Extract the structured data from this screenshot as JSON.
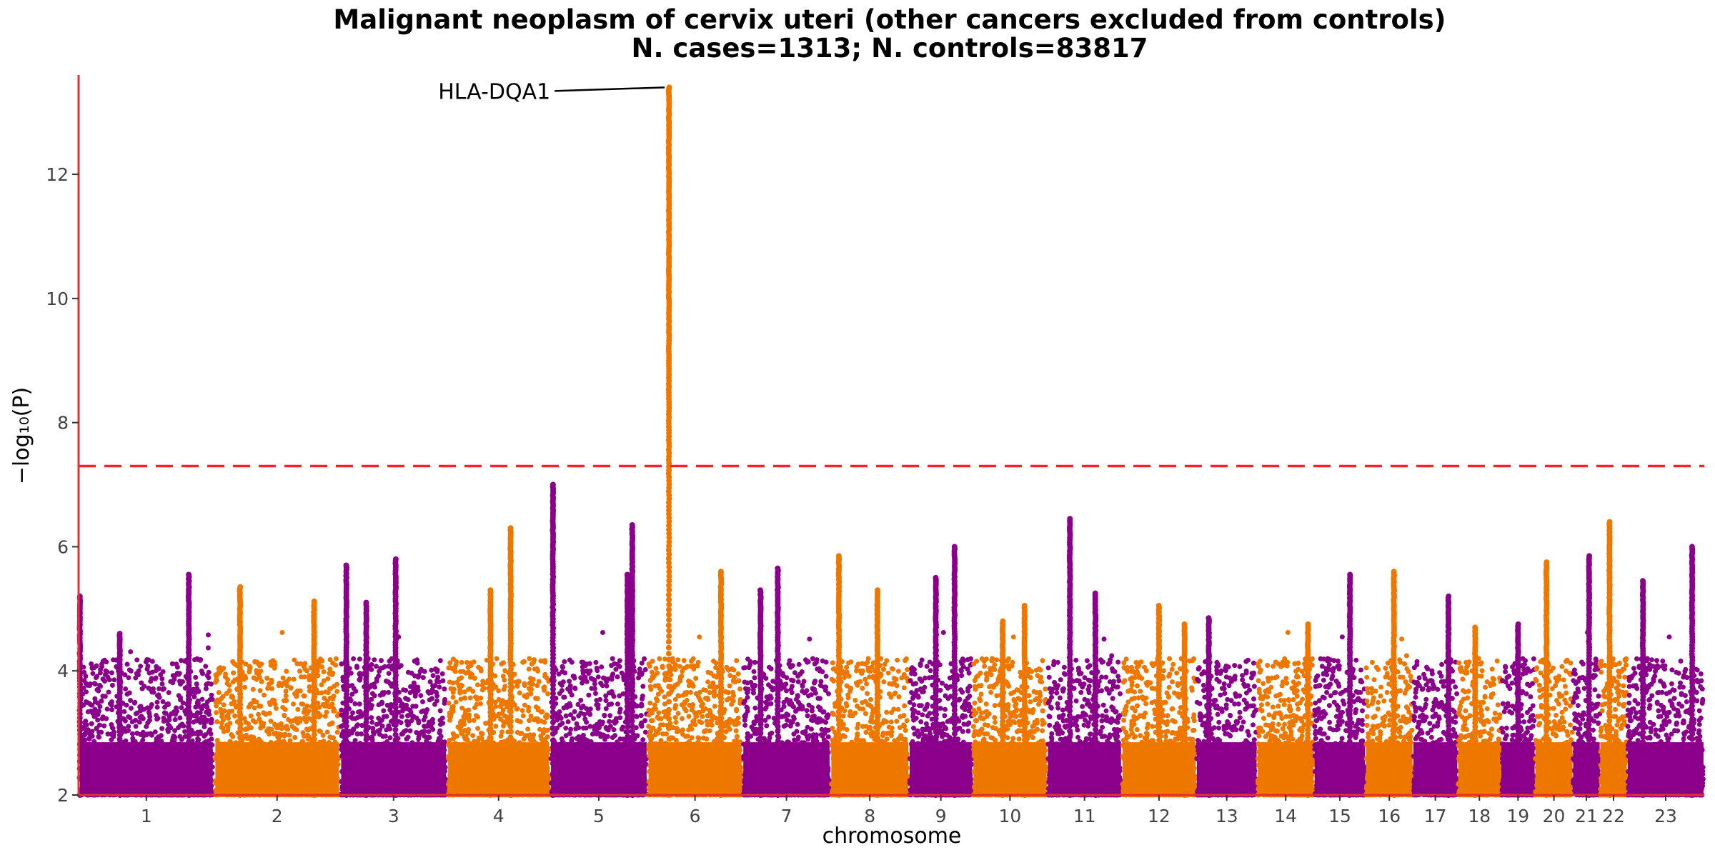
{
  "chart_data": {
    "type": "scatter",
    "subtype": "manhattan",
    "title_line1": "Malignant neoplasm of cervix uteri (other cancers excluded from controls)",
    "title_line2": "N. cases=1313; N. controls=83817",
    "xlabel": "chromosome",
    "ylabel": "−log₁₀(P)",
    "ylim": [
      2,
      13.6
    ],
    "yticks": [
      2,
      4,
      6,
      8,
      10,
      12
    ],
    "threshold": 7.3,
    "threshold_color": "#ff2020",
    "axis_color": "#e53030",
    "grid": false,
    "colors": {
      "odd": "#8b008b",
      "even": "#ee7700"
    },
    "chromosomes": [
      {
        "label": "1",
        "color": "odd",
        "start": 0.0,
        "end": 1.0,
        "peaks": [
          [
            0.0,
            5.2
          ],
          [
            0.82,
            5.55
          ],
          [
            0.3,
            4.6
          ]
        ]
      },
      {
        "label": "2",
        "color": "even",
        "start": 1.0,
        "end": 1.93,
        "peaks": [
          [
            0.2,
            5.35
          ],
          [
            0.8,
            5.12
          ]
        ]
      },
      {
        "label": "3",
        "color": "odd",
        "start": 1.93,
        "end": 2.72,
        "peaks": [
          [
            0.05,
            5.7
          ],
          [
            0.52,
            5.8
          ],
          [
            0.24,
            5.1
          ]
        ]
      },
      {
        "label": "4",
        "color": "even",
        "start": 2.72,
        "end": 3.48,
        "peaks": [
          [
            0.62,
            6.3
          ],
          [
            0.42,
            5.3
          ]
        ]
      },
      {
        "label": "5",
        "color": "odd",
        "start": 3.48,
        "end": 4.2,
        "peaks": [
          [
            0.02,
            7.0
          ],
          [
            0.85,
            6.35
          ],
          [
            0.8,
            5.55
          ]
        ]
      },
      {
        "label": "6",
        "color": "even",
        "start": 4.2,
        "end": 4.9,
        "peaks": [
          [
            0.22,
            13.4
          ],
          [
            0.78,
            5.6
          ]
        ]
      },
      {
        "label": "7",
        "color": "odd",
        "start": 4.9,
        "end": 5.55,
        "peaks": [
          [
            0.4,
            5.65
          ],
          [
            0.2,
            5.3
          ]
        ]
      },
      {
        "label": "8",
        "color": "even",
        "start": 5.55,
        "end": 6.13,
        "peaks": [
          [
            0.1,
            5.85
          ],
          [
            0.6,
            5.3
          ]
        ]
      },
      {
        "label": "9",
        "color": "odd",
        "start": 6.13,
        "end": 6.6,
        "peaks": [
          [
            0.72,
            6.0
          ],
          [
            0.42,
            5.5
          ]
        ]
      },
      {
        "label": "10",
        "color": "even",
        "start": 6.6,
        "end": 7.15,
        "peaks": [
          [
            0.7,
            5.05
          ],
          [
            0.4,
            4.8
          ]
        ]
      },
      {
        "label": "11",
        "color": "odd",
        "start": 7.15,
        "end": 7.7,
        "peaks": [
          [
            0.3,
            6.45
          ],
          [
            0.65,
            5.25
          ]
        ]
      },
      {
        "label": "12",
        "color": "even",
        "start": 7.7,
        "end": 8.25,
        "peaks": [
          [
            0.5,
            5.05
          ],
          [
            0.85,
            4.75
          ]
        ]
      },
      {
        "label": "13",
        "color": "odd",
        "start": 8.25,
        "end": 8.7,
        "peaks": [
          [
            0.2,
            4.85
          ]
        ]
      },
      {
        "label": "14",
        "color": "even",
        "start": 8.7,
        "end": 9.12,
        "peaks": [
          [
            0.9,
            4.75
          ]
        ]
      },
      {
        "label": "15",
        "color": "odd",
        "start": 9.12,
        "end": 9.5,
        "peaks": [
          [
            0.7,
            5.55
          ]
        ]
      },
      {
        "label": "16",
        "color": "even",
        "start": 9.5,
        "end": 9.85,
        "peaks": [
          [
            0.6,
            5.6
          ]
        ]
      },
      {
        "label": "17",
        "color": "odd",
        "start": 9.85,
        "end": 10.18,
        "peaks": [
          [
            0.8,
            5.2
          ]
        ]
      },
      {
        "label": "18",
        "color": "even",
        "start": 10.18,
        "end": 10.5,
        "peaks": [
          [
            0.4,
            4.7
          ]
        ]
      },
      {
        "label": "19",
        "color": "odd",
        "start": 10.5,
        "end": 10.75,
        "peaks": [
          [
            0.5,
            4.75
          ]
        ]
      },
      {
        "label": "20",
        "color": "even",
        "start": 10.75,
        "end": 11.03,
        "peaks": [
          [
            0.3,
            5.75
          ]
        ]
      },
      {
        "label": "21",
        "color": "odd",
        "start": 11.03,
        "end": 11.23,
        "peaks": [
          [
            0.6,
            5.85
          ]
        ]
      },
      {
        "label": "22",
        "color": "even",
        "start": 11.23,
        "end": 11.43,
        "peaks": [
          [
            0.35,
            6.4
          ]
        ]
      },
      {
        "label": "23",
        "color": "odd",
        "start": 11.43,
        "end": 12.0,
        "peaks": [
          [
            0.85,
            6.0
          ],
          [
            0.2,
            5.45
          ]
        ]
      }
    ],
    "annotations": [
      {
        "label": "HLA-DQA1",
        "chromosome": "6",
        "x_frac": 0.22,
        "y": 13.4
      }
    ]
  }
}
